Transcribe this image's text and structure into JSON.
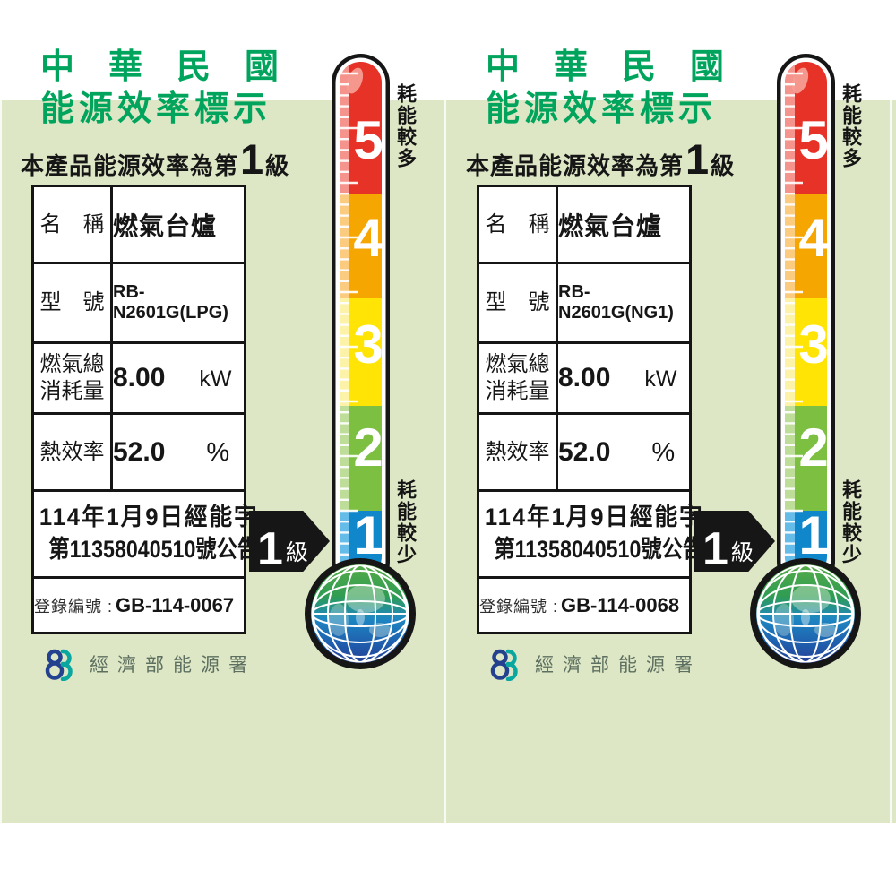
{
  "colors": {
    "panel_background": "#dde7c5",
    "title_green": "#00a45c",
    "arrow_black": "#161616"
  },
  "thermometer": {
    "top_label": "耗能較多",
    "bottom_label": "耗能較少",
    "arrow_grade": "1",
    "arrow_unit": "級",
    "levels": [
      {
        "number": "5",
        "color": "#e63227",
        "light": "#f5948c"
      },
      {
        "number": "4",
        "color": "#f6a600",
        "light": "#fbcb80"
      },
      {
        "number": "3",
        "color": "#ffe405",
        "light": "#fdf3a8"
      },
      {
        "number": "2",
        "color": "#7cbf41",
        "light": "#bedd98"
      },
      {
        "number": "1",
        "color": "#1187cb",
        "light": "#65bce9"
      }
    ]
  },
  "labels": [
    {
      "title_line1": "中　華　民　國",
      "title_line2": "能源效率標示",
      "subtitle_prefix": "本產品能源效率為第",
      "grade": "1",
      "grade_unit": "級",
      "table": {
        "name_label": "名　稱",
        "name_value": "燃氣台爐",
        "model_label": "型　號",
        "model_value": "RB-N2601G(LPG)",
        "consumption_label": "燃氣總\n消耗量",
        "consumption_value": "8.00",
        "consumption_unit": "kW",
        "efficiency_label": "熱效率",
        "efficiency_value": "52.0",
        "efficiency_unit": "%",
        "announcement_line1": "114年1月9日經能字",
        "announcement_line2": "第11358040510號公告",
        "registration_label": "登錄編號 :",
        "registration_value": "GB-114-0067"
      },
      "agency": "經濟部能源署"
    },
    {
      "title_line1": "中　華　民　國",
      "title_line2": "能源效率標示",
      "subtitle_prefix": "本產品能源效率為第",
      "grade": "1",
      "grade_unit": "級",
      "table": {
        "name_label": "名　稱",
        "name_value": "燃氣台爐",
        "model_label": "型　號",
        "model_value": "RB-N2601G(NG1)",
        "consumption_label": "燃氣總\n消耗量",
        "consumption_value": "8.00",
        "consumption_unit": "kW",
        "efficiency_label": "熱效率",
        "efficiency_value": "52.0",
        "efficiency_unit": "%",
        "announcement_line1": "114年1月9日經能字",
        "announcement_line2": "第11358040510號公告",
        "registration_label": "登錄編號 :",
        "registration_value": "GB-114-0068"
      },
      "agency": "經濟部能源署"
    }
  ]
}
